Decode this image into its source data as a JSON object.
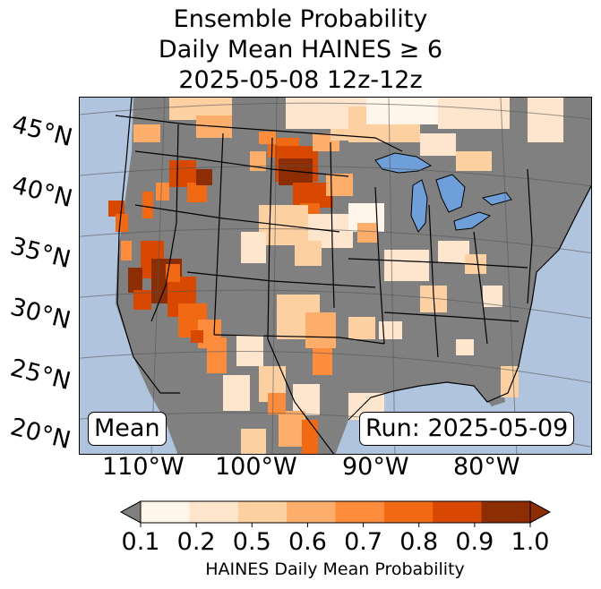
{
  "title": {
    "line1": "Ensemble Probability",
    "line2": "Daily Mean HAINES ≥ 6",
    "line3": "2025-05-08 12z-12z"
  },
  "latitude_labels": [
    "45°N",
    "40°N",
    "35°N",
    "30°N",
    "25°N",
    "20°N"
  ],
  "longitude_labels": [
    "110°W",
    "100°W",
    "90°W",
    "80°W"
  ],
  "inset": {
    "stat": "Mean",
    "run": "Run: 2025-05-09"
  },
  "colorbar": {
    "ticks": [
      "0.1",
      "0.2",
      "0.5",
      "0.6",
      "0.7",
      "0.8",
      "0.9",
      "1.0"
    ],
    "colors": [
      "#fff5eb",
      "#fee6ce",
      "#fdd0a2",
      "#fdae6b",
      "#fd8d3c",
      "#f16913",
      "#d94801",
      "#8c2d04"
    ],
    "under_color": "#808080",
    "label": "HAINES Daily Mean Probability"
  },
  "map_colors": {
    "ocean": "#b0c4de",
    "land_low": "#808080"
  }
}
